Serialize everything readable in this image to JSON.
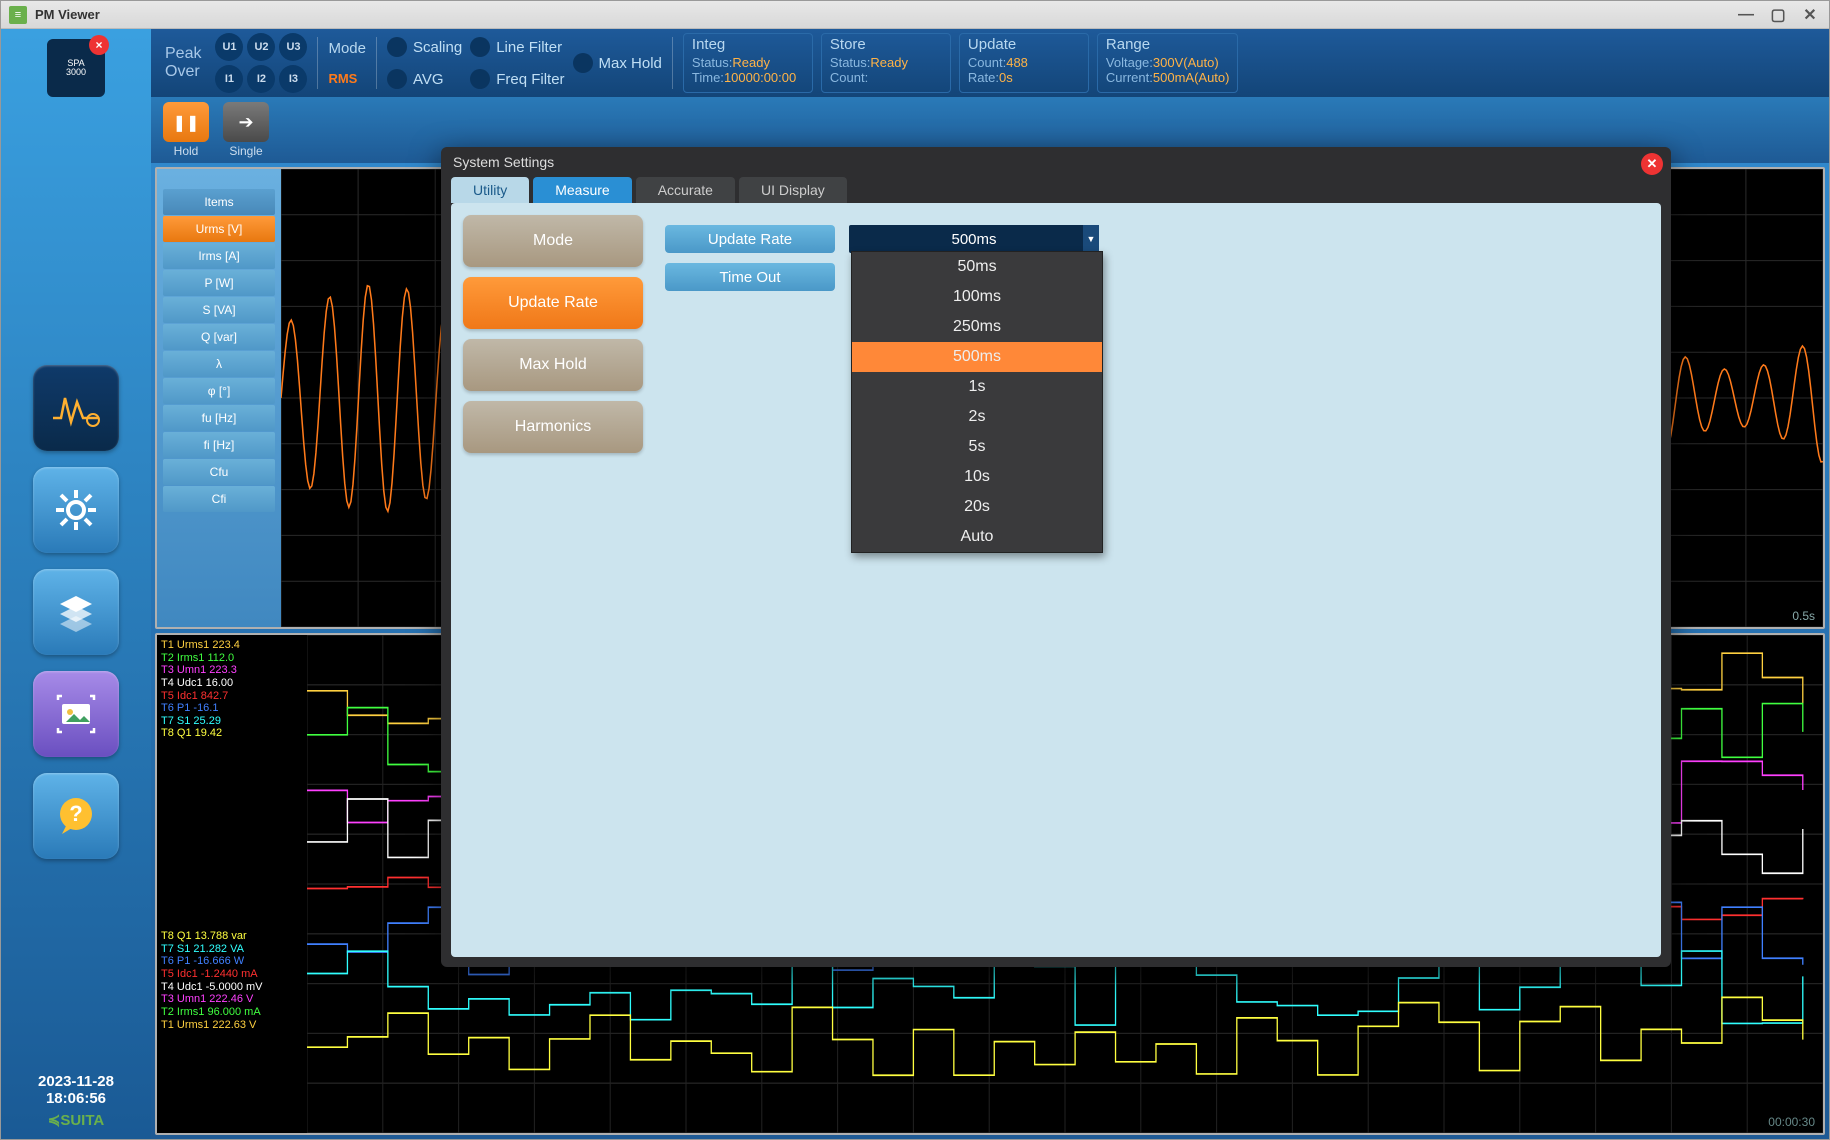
{
  "window": {
    "title": "PM Viewer"
  },
  "rail": {
    "date": "2023-11-28",
    "time": "18:06:56",
    "brand": "≼SUITA"
  },
  "topbar": {
    "peak_line1": "Peak",
    "peak_line2": "Over",
    "channels_u": [
      "U1",
      "U2",
      "U3"
    ],
    "channels_i": [
      "I1",
      "I2",
      "I3"
    ],
    "mode_label": "Mode",
    "mode_value": "RMS",
    "flags_col1": [
      "Scaling",
      "AVG"
    ],
    "flags_col2": [
      "Line Filter",
      "Freq Filter"
    ],
    "flags_col3": [
      "Max Hold"
    ],
    "integ": {
      "hdr": "Integ",
      "status_lbl": "Status:",
      "status_val": "Ready",
      "time_lbl": "Time:",
      "time_val": "10000:00:00"
    },
    "store": {
      "hdr": "Store",
      "status_lbl": "Status:",
      "status_val": "Ready",
      "count_lbl": "Count:",
      "count_val": ""
    },
    "update": {
      "hdr": "Update",
      "count_lbl": "Count:",
      "count_val": "488",
      "rate_lbl": "Rate:",
      "rate_val": "0s"
    },
    "range": {
      "hdr": "Range",
      "volt_lbl": "Voltage:",
      "volt_val": "300V(Auto)",
      "curr_lbl": "Current:",
      "curr_val": "500mA(Auto)"
    }
  },
  "toolbar": {
    "hold": "Hold",
    "single": "Single"
  },
  "items_panel": {
    "header": "Items",
    "rows": [
      "Urms [V]",
      "Irms [A]",
      "P [W]",
      "S [VA]",
      "Q [var]",
      "λ",
      "φ [°]",
      "fu [Hz]",
      "fi [Hz]",
      "Cfu",
      "Cfi"
    ],
    "selected_index": 0,
    "chart_time_label": "0.5s",
    "waveform_color": "#ff7a1a",
    "grid_color": "#2a2a2a"
  },
  "bottom_panel": {
    "traces_a": [
      {
        "id": "T1",
        "name": "Urms1",
        "val": "223.4",
        "color": "#ffd040"
      },
      {
        "id": "T2",
        "name": "Irms1",
        "val": "112.0",
        "color": "#40ff40"
      },
      {
        "id": "T3",
        "name": "Umn1",
        "val": "223.3",
        "color": "#ff40ff"
      },
      {
        "id": "T4",
        "name": "Udc1",
        "val": "16.00",
        "color": "#ffffff"
      },
      {
        "id": "T5",
        "name": "Idc1",
        "val": "842.7",
        "color": "#ff3030"
      },
      {
        "id": "T6",
        "name": "P1",
        "val": "-16.1",
        "color": "#4080ff"
      },
      {
        "id": "T7",
        "name": "S1",
        "val": "25.29",
        "color": "#30ffff"
      },
      {
        "id": "T8",
        "name": "Q1",
        "val": "19.42",
        "color": "#ffff40"
      }
    ],
    "traces_b": [
      {
        "id": "T8",
        "name": "Q1",
        "val": "13.788 var",
        "color": "#ffff40"
      },
      {
        "id": "T7",
        "name": "S1",
        "val": "21.282 VA",
        "color": "#30ffff"
      },
      {
        "id": "T6",
        "name": "P1",
        "val": "-16.666 W",
        "color": "#4080ff"
      },
      {
        "id": "T5",
        "name": "Idc1",
        "val": "-1.2440 mA",
        "color": "#ff3030"
      },
      {
        "id": "T4",
        "name": "Udc1",
        "val": "-5.0000 mV",
        "color": "#ffffff"
      },
      {
        "id": "T3",
        "name": "Umn1",
        "val": "222.46 V",
        "color": "#ff40ff"
      },
      {
        "id": "T2",
        "name": "Irms1",
        "val": "96.000 mA",
        "color": "#40ff40"
      },
      {
        "id": "T1",
        "name": "Urms1",
        "val": "222.63 V",
        "color": "#ffd040"
      }
    ],
    "time_label": "00:00:30",
    "step_colors": [
      "#ffd040",
      "#40ff40",
      "#ff40ff",
      "#ffffff",
      "#ff3030",
      "#4080ff",
      "#30ffff",
      "#ffff40"
    ]
  },
  "modal": {
    "title": "System Settings",
    "tabs": [
      "Utility",
      "Measure",
      "Accurate",
      "UI Display"
    ],
    "active_tab_index": 1,
    "nav": [
      "Mode",
      "Update Rate",
      "Max Hold",
      "Harmonics"
    ],
    "nav_selected_index": 1,
    "fields": {
      "update_rate": {
        "label": "Update Rate",
        "value": "500ms"
      },
      "timeout": {
        "label": "Time Out"
      }
    },
    "dropdown": {
      "options": [
        "50ms",
        "100ms",
        "250ms",
        "500ms",
        "1s",
        "2s",
        "5s",
        "10s",
        "20s",
        "Auto"
      ],
      "selected_index": 3
    }
  }
}
